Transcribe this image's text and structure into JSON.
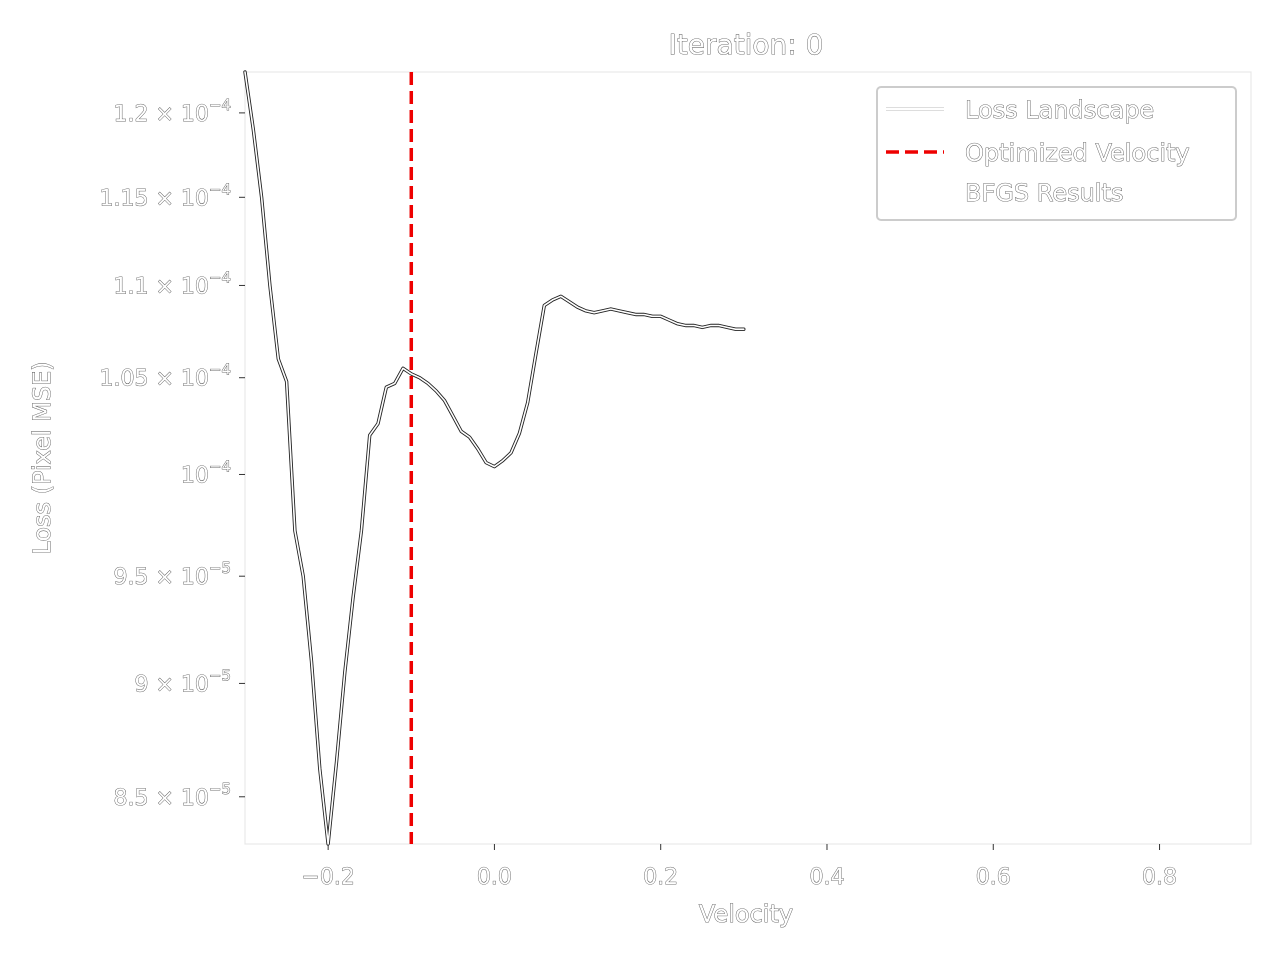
{
  "chart_data": {
    "type": "line",
    "title": "Iteration: 0",
    "xlabel": "Velocity",
    "ylabel": "Loss (Pixel MSE)",
    "xlim": [
      -0.3,
      0.91
    ],
    "ylim": [
      8.3e-05,
      0.0001225
    ],
    "yscale": "log",
    "grid": false,
    "legend_position": "top-right",
    "xticks": [
      -0.2,
      0.0,
      0.2,
      0.4,
      0.6,
      0.8
    ],
    "xtick_labels": [
      "−0.2",
      "0.0",
      "0.2",
      "0.4",
      "0.6",
      "0.8"
    ],
    "yticks": [
      {
        "value": 0.00012,
        "mantissa": "1.2",
        "exp": "−4"
      },
      {
        "value": 0.000115,
        "mantissa": "1.15",
        "exp": "−4"
      },
      {
        "value": 0.00011,
        "mantissa": "1.1",
        "exp": "−4"
      },
      {
        "value": 0.000105,
        "mantissa": "1.05",
        "exp": "−4"
      },
      {
        "value": 0.0001,
        "mantissa": "",
        "exp": "−4"
      },
      {
        "value": 9.5e-05,
        "mantissa": "9.5",
        "exp": "−5"
      },
      {
        "value": 9e-05,
        "mantissa": "9",
        "exp": "−5"
      },
      {
        "value": 8.5e-05,
        "mantissa": "8.5",
        "exp": "−5"
      }
    ],
    "series": [
      {
        "name": "Loss Landscape",
        "style": "solid",
        "color": "#ffffff",
        "x": [
          -0.3,
          -0.29,
          -0.28,
          -0.27,
          -0.26,
          -0.25,
          -0.24,
          -0.23,
          -0.22,
          -0.21,
          -0.2,
          -0.19,
          -0.18,
          -0.17,
          -0.16,
          -0.15,
          -0.14,
          -0.13,
          -0.12,
          -0.11,
          -0.1,
          -0.09,
          -0.08,
          -0.07,
          -0.06,
          -0.05,
          -0.04,
          -0.03,
          -0.02,
          -0.01,
          0.0,
          0.01,
          0.02,
          0.03,
          0.04,
          0.05,
          0.06,
          0.07,
          0.08,
          0.09,
          0.1,
          0.11,
          0.12,
          0.13,
          0.14,
          0.15,
          0.16,
          0.17,
          0.18,
          0.19,
          0.2,
          0.21,
          0.22,
          0.23,
          0.24,
          0.25,
          0.26,
          0.27,
          0.28,
          0.29,
          0.3
        ],
        "y": [
          0.0001225,
          0.000119,
          0.000115,
          0.00011,
          0.000106,
          0.0001048,
          9.72e-05,
          9.5e-05,
          9.1e-05,
          8.62e-05,
          8.3e-05,
          8.65e-05,
          9.05e-05,
          9.4e-05,
          9.72e-05,
          0.000102,
          0.0001026,
          0.0001045,
          0.0001047,
          0.0001055,
          0.0001052,
          0.000105,
          0.0001047,
          0.0001043,
          0.0001038,
          0.000103,
          0.0001022,
          0.0001019,
          0.0001013,
          0.0001006,
          0.0001004,
          0.0001007,
          0.0001011,
          0.0001021,
          0.0001037,
          0.0001063,
          0.0001089,
          0.0001092,
          0.0001094,
          0.0001091,
          0.0001088,
          0.0001086,
          0.0001085,
          0.0001086,
          0.0001087,
          0.0001086,
          0.0001085,
          0.0001084,
          0.0001084,
          0.0001083,
          0.0001083,
          0.0001081,
          0.0001079,
          0.0001078,
          0.0001078,
          0.0001077,
          0.0001078,
          0.0001078,
          0.0001077,
          0.0001076,
          0.0001076
        ]
      },
      {
        "name": "Optimized Velocity",
        "style": "dashed",
        "color": "#ee0000",
        "vline_x": -0.1
      },
      {
        "name": "BFGS Results",
        "style": "marker",
        "color": "#ffffff",
        "points": []
      }
    ]
  }
}
